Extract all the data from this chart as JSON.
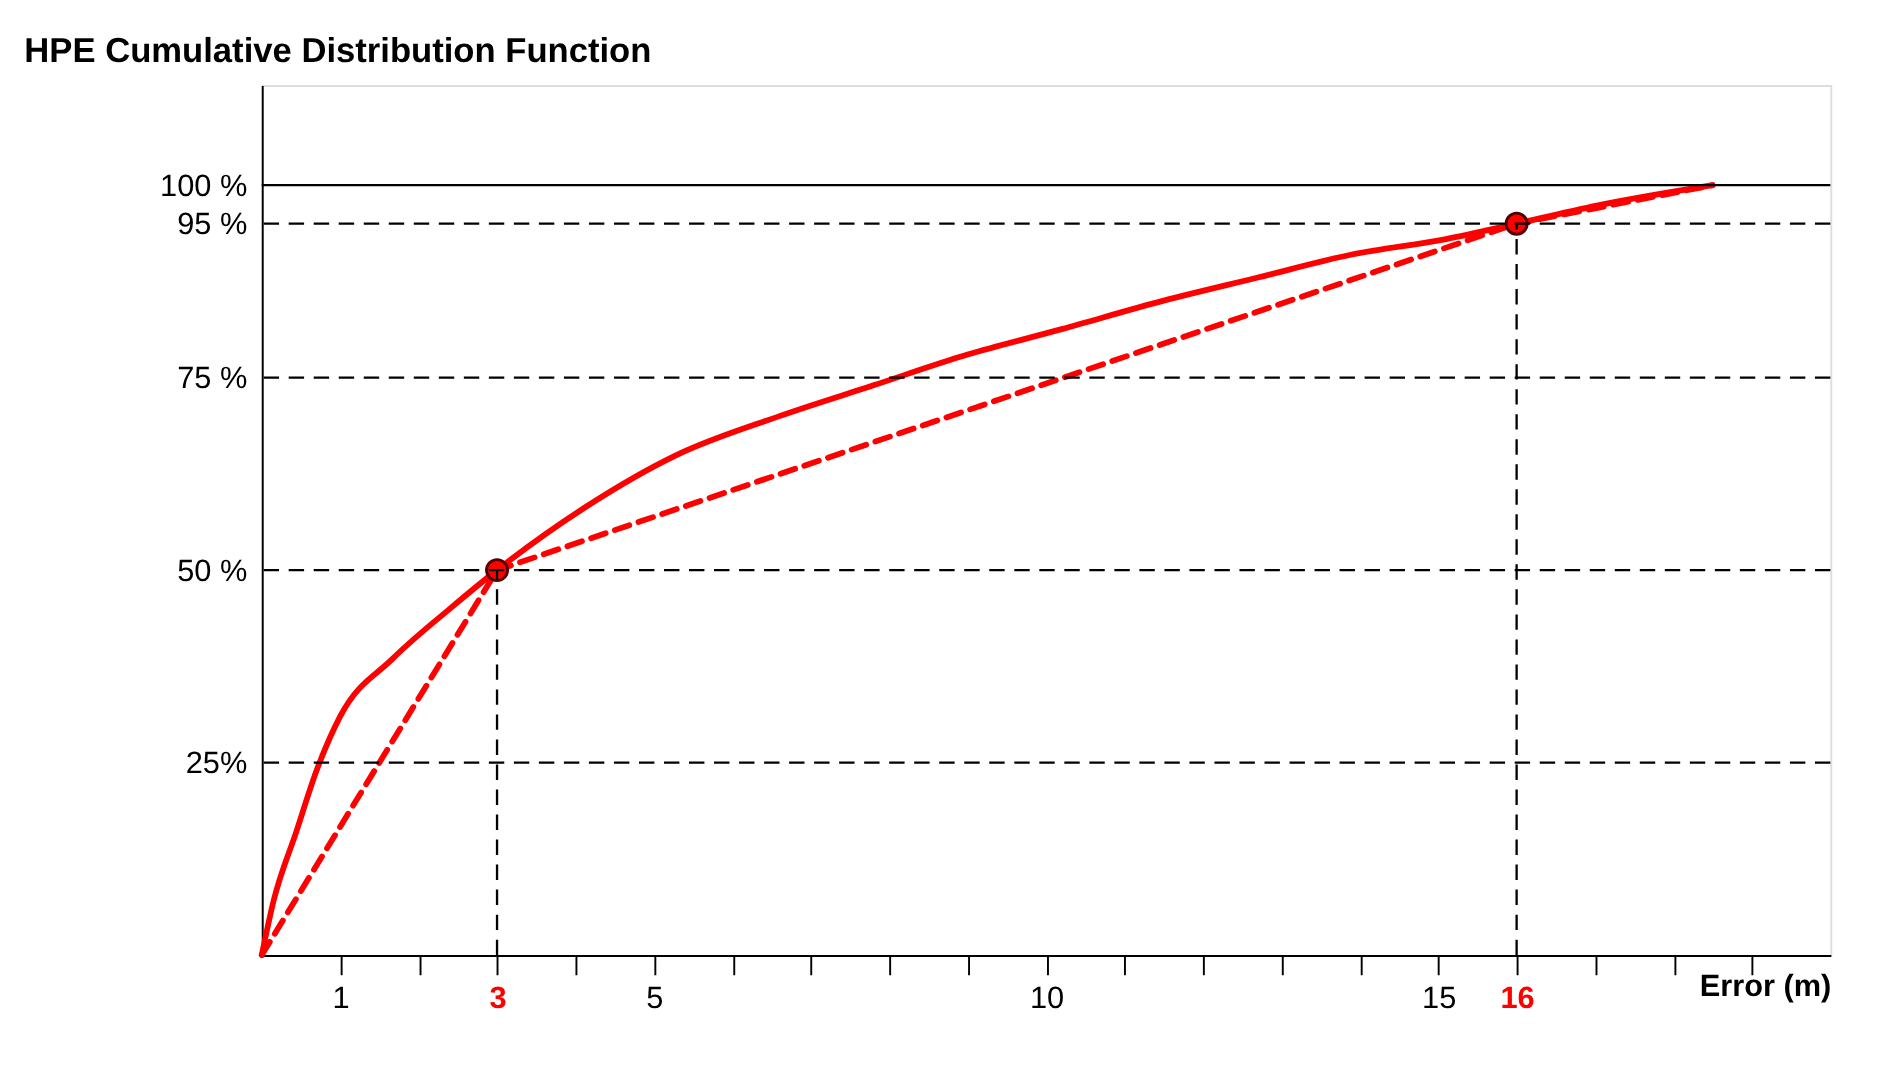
{
  "chart_data": {
    "type": "line",
    "title": "HPE Cumulative Distribution Function",
    "xlabel": "Error (m)",
    "xlim": [
      0,
      20
    ],
    "ylim": [
      0,
      113
    ],
    "xticks": [
      {
        "value": 1,
        "label": "1"
      },
      {
        "value": 2,
        "label": null
      },
      {
        "value": 3,
        "label": "3"
      },
      {
        "value": 4,
        "label": null
      },
      {
        "value": 5,
        "label": "5"
      },
      {
        "value": 6,
        "label": null
      },
      {
        "value": 7,
        "label": null
      },
      {
        "value": 8,
        "label": null
      },
      {
        "value": 9,
        "label": null
      },
      {
        "value": 10,
        "label": "10"
      },
      {
        "value": 11,
        "label": null
      },
      {
        "value": 12,
        "label": null
      },
      {
        "value": 13,
        "label": null
      },
      {
        "value": 14,
        "label": null
      },
      {
        "value": 15,
        "label": "15"
      },
      {
        "value": 16,
        "label": "16"
      },
      {
        "value": 17,
        "label": null
      },
      {
        "value": 18,
        "label": null
      },
      {
        "value": 19,
        "label": null
      }
    ],
    "yticks": [
      {
        "value": 25,
        "label": "25%"
      },
      {
        "value": 50,
        "label": "50 %"
      },
      {
        "value": 75,
        "label": "75 %"
      },
      {
        "value": 95,
        "label": "95 %"
      },
      {
        "value": 100,
        "label": "100 %"
      }
    ],
    "series": [
      {
        "type": "line",
        "color": "#ff0000",
        "line_style": "solid",
        "x": [
          0,
          0.15,
          0.44,
          0.7,
          1,
          1.67,
          2.4,
          3,
          4.1,
          5.3,
          6.6,
          7.8,
          9,
          10.2,
          11.5,
          12.7,
          13.9,
          15.1,
          16,
          17.1,
          18.5
        ],
        "values": [
          0,
          7,
          16,
          24,
          31,
          38.5,
          45,
          50,
          58,
          65,
          70,
          74,
          78,
          81.3,
          85,
          88,
          91,
          93,
          95,
          97.5,
          100
        ]
      },
      {
        "type": "line",
        "color": "#ff0000",
        "line_style": "dashed",
        "x": [
          0,
          3,
          16,
          18.5
        ],
        "values": [
          0,
          50,
          95,
          100
        ]
      },
      {
        "type": "scatter",
        "color": "#ff0000",
        "marker": "circle",
        "x": [
          3,
          16
        ],
        "values": [
          50,
          95
        ]
      }
    ],
    "ref_lines": [
      {
        "axis": "y",
        "value": 25,
        "line_style": "dashed",
        "color": "#000000"
      },
      {
        "axis": "y",
        "value": 50,
        "line_style": "dashed",
        "color": "#000000"
      },
      {
        "axis": "y",
        "value": 75,
        "line_style": "dashed",
        "color": "#000000"
      },
      {
        "axis": "y",
        "value": 95,
        "line_style": "dashed",
        "color": "#000000"
      },
      {
        "axis": "y",
        "value": 100,
        "line_style": "solid",
        "color": "#000000"
      },
      {
        "axis": "x",
        "value": 3,
        "line_style": "dashed",
        "color": "#000000"
      },
      {
        "axis": "x",
        "value": 16,
        "line_style": "dashed",
        "color": "#000000"
      }
    ],
    "grid": false,
    "legend": false
  }
}
